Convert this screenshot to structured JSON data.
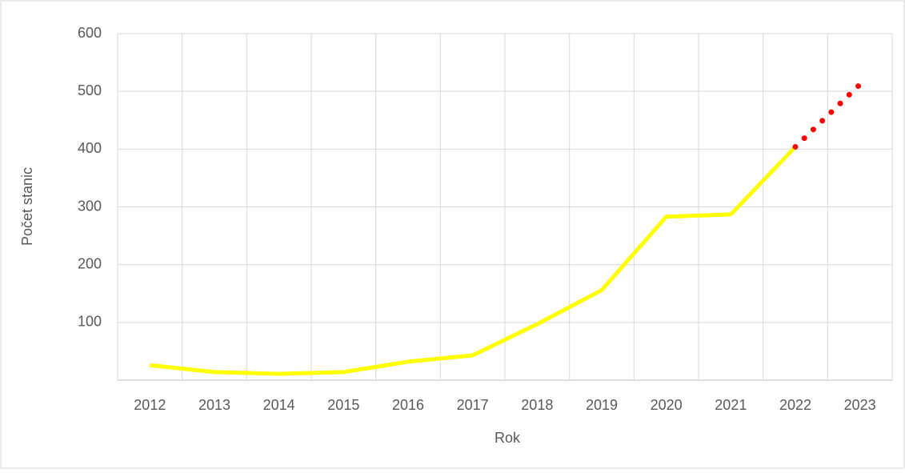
{
  "chart_data": {
    "type": "line",
    "x_label": "Rok",
    "y_label": "Počet stanic",
    "categories": [
      "2012",
      "2013",
      "2014",
      "2015",
      "2016",
      "2017",
      "2018",
      "2019",
      "2020",
      "2021",
      "2022",
      "2023"
    ],
    "series": [
      {
        "color": "#ffff00",
        "style": "solid",
        "values": [
          26,
          14,
          11,
          14,
          32,
          43,
          97,
          156,
          283,
          287,
          404,
          null
        ]
      },
      {
        "color": "#ff0000",
        "style": "dotted",
        "values": [
          null,
          null,
          null,
          null,
          null,
          null,
          null,
          null,
          null,
          null,
          404,
          512
        ]
      }
    ],
    "ylim": [
      0,
      600
    ],
    "yticks": [
      100,
      200,
      300,
      400,
      500,
      600
    ],
    "grid": true
  }
}
